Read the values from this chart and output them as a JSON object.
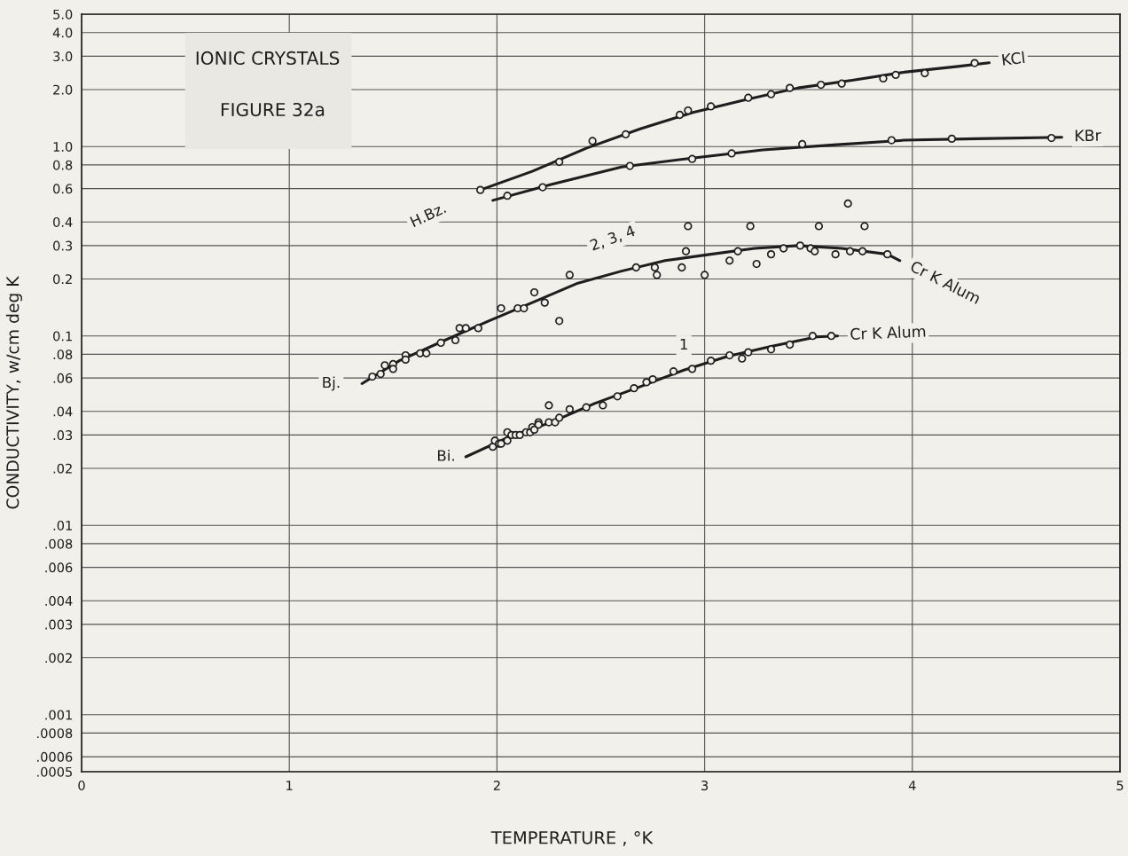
{
  "chart_data": {
    "type": "scatter",
    "title": "IONIC CRYSTALS",
    "subtitle": "FIGURE 32a",
    "xlabel": "TEMPERATURE , °K",
    "ylabel": "CONDUCTIVITY, w/cm deg K",
    "xlim": [
      0,
      5
    ],
    "xticks": [
      0,
      1,
      2,
      3,
      4,
      5
    ],
    "ylim": [
      0.0005,
      5.0
    ],
    "log": "y",
    "yticks": [
      {
        "value": 5,
        "label": "5.0"
      },
      {
        "value": 4,
        "label": "4.0"
      },
      {
        "value": 3,
        "label": "3.0"
      },
      {
        "value": 2,
        "label": "2.0"
      },
      {
        "value": 1,
        "label": "1.0"
      },
      {
        "value": 0.8,
        "label": "0.8"
      },
      {
        "value": 0.6,
        "label": "0.6"
      },
      {
        "value": 0.4,
        "label": "0.4"
      },
      {
        "value": 0.3,
        "label": "0.3"
      },
      {
        "value": 0.2,
        "label": "0.2"
      },
      {
        "value": 0.1,
        "label": "0.1"
      },
      {
        "value": 0.08,
        "label": ".08"
      },
      {
        "value": 0.06,
        "label": ".06"
      },
      {
        "value": 0.04,
        "label": ".04"
      },
      {
        "value": 0.03,
        "label": ".03"
      },
      {
        "value": 0.02,
        "label": ".02"
      },
      {
        "value": 0.01,
        "label": ".01"
      },
      {
        "value": 0.008,
        "label": ".008"
      },
      {
        "value": 0.006,
        "label": ".006"
      },
      {
        "value": 0.004,
        "label": ".004"
      },
      {
        "value": 0.003,
        "label": ".003"
      },
      {
        "value": 0.002,
        "label": ".002"
      },
      {
        "value": 0.001,
        "label": ".001"
      },
      {
        "value": 0.0008,
        "label": ".0008"
      },
      {
        "value": 0.0006,
        "label": ".0006"
      },
      {
        "value": 0.0005,
        "label": ".0005"
      }
    ],
    "grid": true,
    "legend": false,
    "marker": "circle",
    "series": [
      {
        "name": "KCl",
        "type": "line",
        "marker": "none",
        "color": "#1e1e1e",
        "x": [
          1.92,
          2.17,
          2.43,
          2.69,
          2.94,
          3.2,
          3.45,
          3.71,
          3.96,
          4.22,
          4.37
        ],
        "values": [
          0.59,
          0.74,
          0.98,
          1.24,
          1.51,
          1.77,
          2.04,
          2.24,
          2.47,
          2.65,
          2.77
        ]
      },
      {
        "color": "#1e1e1e",
        "x": [
          1.92,
          2.3,
          2.46,
          2.62,
          2.88,
          2.92,
          3.03,
          3.21,
          3.32,
          3.41,
          3.56,
          3.66,
          3.86,
          3.92,
          4.06,
          4.3
        ],
        "values": [
          0.59,
          0.83,
          1.07,
          1.16,
          1.47,
          1.55,
          1.63,
          1.81,
          1.89,
          2.04,
          2.12,
          2.15,
          2.29,
          2.39,
          2.44,
          2.76
        ]
      },
      {
        "name": "KBr",
        "type": "line",
        "marker": "none",
        "color": "#1e1e1e",
        "x": [
          1.98,
          2.26,
          2.6,
          2.94,
          3.28,
          3.62,
          3.96,
          4.31,
          4.72
        ],
        "values": [
          0.52,
          0.63,
          0.78,
          0.87,
          0.96,
          1.02,
          1.08,
          1.1,
          1.12
        ]
      },
      {
        "color": "#1e1e1e",
        "x": [
          2.05,
          2.22,
          2.64,
          2.94,
          3.13,
          3.47,
          3.9,
          4.19,
          4.67
        ],
        "values": [
          0.55,
          0.61,
          0.79,
          0.86,
          0.92,
          1.03,
          1.08,
          1.1,
          1.11
        ]
      },
      {
        "name": "Cr K Alum",
        "type": "line",
        "marker": "none",
        "color": "#1e1e1e",
        "x": [
          1.35,
          1.53,
          1.75,
          1.96,
          2.17,
          2.39,
          2.6,
          2.81,
          3.03,
          3.24,
          3.45,
          3.66,
          3.88,
          3.94
        ],
        "values": [
          0.056,
          0.074,
          0.095,
          0.12,
          0.15,
          0.19,
          0.22,
          0.25,
          0.27,
          0.29,
          0.3,
          0.29,
          0.27,
          0.25
        ]
      },
      {
        "color": "#1e1e1e",
        "x": [
          1.4,
          1.44,
          1.46,
          1.5,
          1.5,
          1.56,
          1.56,
          1.63,
          1.66,
          1.73,
          1.8,
          1.82,
          1.85,
          1.91,
          2.02,
          2.1,
          2.13,
          2.23,
          2.18,
          2.3,
          2.35,
          2.67,
          2.76,
          2.77,
          2.89,
          2.91,
          2.92,
          3.0,
          3.12,
          3.16,
          3.22,
          3.25,
          3.32,
          3.38,
          3.46,
          3.51,
          3.53,
          3.55,
          3.63,
          3.69,
          3.7,
          3.76,
          3.77,
          3.88
        ],
        "values": [
          0.061,
          0.063,
          0.07,
          0.071,
          0.067,
          0.079,
          0.075,
          0.081,
          0.081,
          0.092,
          0.095,
          0.11,
          0.11,
          0.11,
          0.14,
          0.14,
          0.14,
          0.15,
          0.17,
          0.12,
          0.21,
          0.23,
          0.23,
          0.21,
          0.23,
          0.28,
          0.38,
          0.21,
          0.25,
          0.28,
          0.38,
          0.24,
          0.27,
          0.29,
          0.3,
          0.29,
          0.28,
          0.38,
          0.27,
          0.5,
          0.28,
          0.28,
          0.38,
          0.27
        ]
      },
      {
        "name": "Cr K Alum",
        "type": "line",
        "marker": "none",
        "color": "#1e1e1e",
        "x": [
          1.85,
          2.05,
          2.26,
          2.47,
          2.69,
          2.9,
          3.11,
          3.32,
          3.54,
          3.64
        ],
        "values": [
          0.023,
          0.029,
          0.035,
          0.044,
          0.054,
          0.066,
          0.078,
          0.088,
          0.099,
          0.1
        ]
      },
      {
        "color": "#1e1e1e",
        "x": [
          1.98,
          1.99,
          2.01,
          2.02,
          2.05,
          2.05,
          2.07,
          2.09,
          2.11,
          2.14,
          2.16,
          2.17,
          2.18,
          2.2,
          2.2,
          2.25,
          2.28,
          2.3,
          2.25,
          2.35,
          2.43,
          2.51,
          2.58,
          2.66,
          2.72,
          2.75,
          2.85,
          2.94,
          3.03,
          3.12,
          3.18,
          3.21,
          3.32,
          3.41,
          3.52,
          3.61
        ],
        "values": [
          0.026,
          0.028,
          0.027,
          0.027,
          0.028,
          0.031,
          0.03,
          0.03,
          0.03,
          0.031,
          0.031,
          0.033,
          0.032,
          0.035,
          0.034,
          0.035,
          0.035,
          0.037,
          0.043,
          0.041,
          0.042,
          0.043,
          0.048,
          0.053,
          0.057,
          0.059,
          0.065,
          0.067,
          0.074,
          0.079,
          0.076,
          0.082,
          0.085,
          0.09,
          0.1,
          0.1
        ]
      }
    ],
    "annotations": [
      {
        "text": "H.Bz.",
        "x": 1.92,
        "y": 0.59
      },
      {
        "text": "2, 3, 4",
        "x": 2.6,
        "y": 0.22
      },
      {
        "text": "Bj.",
        "x": 1.35,
        "y": 0.056
      },
      {
        "text": "1",
        "x": 2.9,
        "y": 0.066
      },
      {
        "text": "Bi.",
        "x": 1.85,
        "y": 0.023
      }
    ]
  }
}
